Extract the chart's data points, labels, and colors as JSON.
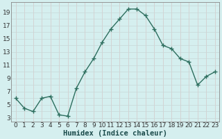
{
  "xlabel": "Humidex (Indice chaleur)",
  "x_values": [
    0,
    1,
    2,
    3,
    4,
    5,
    6,
    7,
    8,
    9,
    10,
    11,
    12,
    13,
    14,
    15,
    16,
    17,
    18,
    19,
    20,
    21,
    22,
    23
  ],
  "y_values": [
    6,
    4.5,
    4,
    6,
    6.3,
    3.5,
    3.3,
    7.5,
    10,
    12,
    14.5,
    16.5,
    18,
    19.5,
    19.5,
    18.5,
    16.5,
    14,
    13.5,
    12,
    11.5,
    8,
    9.3,
    10
  ],
  "line_color": "#2d6e5e",
  "bg_color": "#d5efef",
  "grid_color_h": "#c8d8d8",
  "grid_color_v": "#d4c8c8",
  "ylim": [
    2.5,
    20.5
  ],
  "yticks": [
    3,
    5,
    7,
    9,
    11,
    13,
    15,
    17,
    19
  ],
  "xlim": [
    -0.5,
    23.5
  ],
  "xlabel_fontsize": 7.5,
  "tick_fontsize": 6.5,
  "marker_size": 2.5
}
